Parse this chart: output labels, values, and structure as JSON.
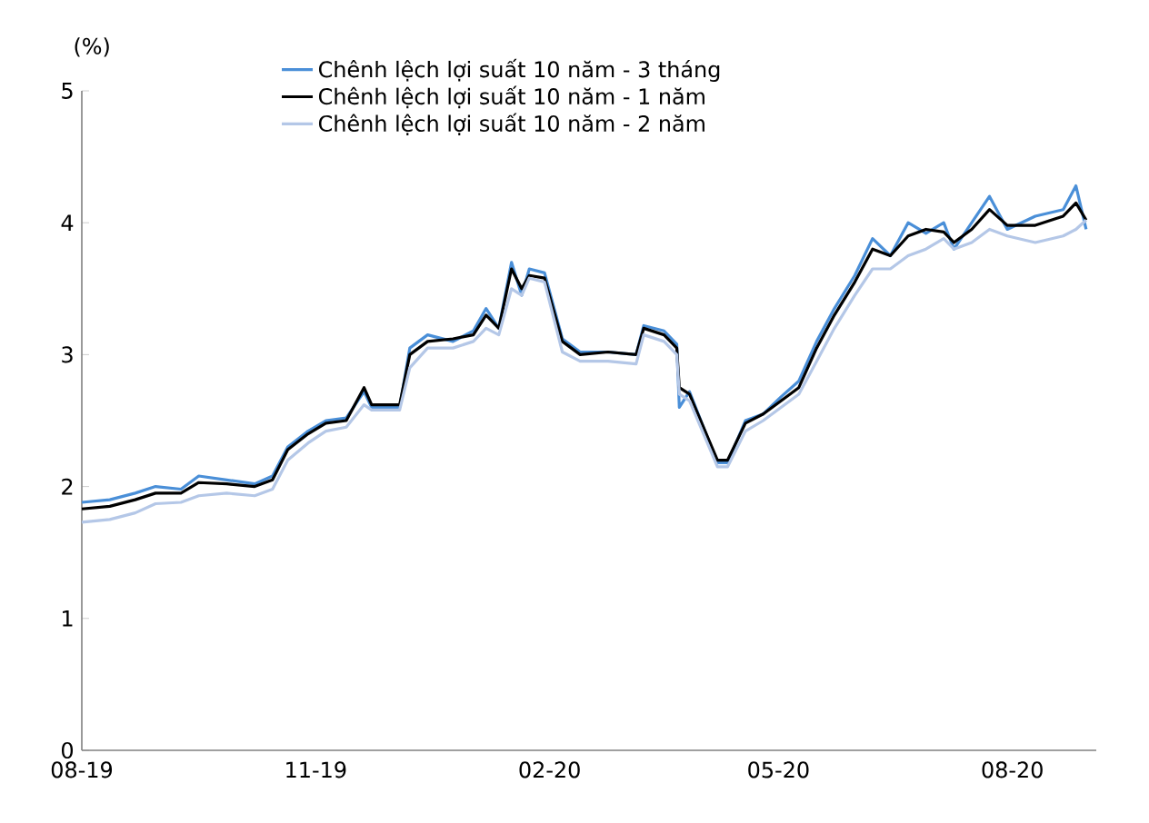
{
  "chart_data": {
    "type": "line",
    "ylabel": "(%)",
    "x": [
      "2019-08-01",
      "2019-08-12",
      "2019-08-22",
      "2019-08-30",
      "2019-09-09",
      "2019-09-16",
      "2019-09-27",
      "2019-10-08",
      "2019-10-15",
      "2019-10-21",
      "2019-10-29",
      "2019-11-05",
      "2019-11-13",
      "2019-11-20",
      "2019-11-23",
      "2019-12-04",
      "2019-12-08",
      "2019-12-15",
      "2019-12-25",
      "2020-01-02",
      "2020-01-07",
      "2020-01-12",
      "2020-01-17",
      "2020-01-21",
      "2020-01-24",
      "2020-01-30",
      "2020-02-06",
      "2020-02-13",
      "2020-02-24",
      "2020-03-06",
      "2020-03-09",
      "2020-03-17",
      "2020-03-22",
      "2020-03-23",
      "2020-03-27",
      "2020-04-07",
      "2020-04-11",
      "2020-04-18",
      "2020-04-25",
      "2020-05-02",
      "2020-05-09",
      "2020-05-16",
      "2020-05-23",
      "2020-05-31",
      "2020-06-07",
      "2020-06-14",
      "2020-06-21",
      "2020-06-28",
      "2020-07-05",
      "2020-07-09",
      "2020-07-16",
      "2020-07-23",
      "2020-07-30",
      "2020-08-10",
      "2020-08-21",
      "2020-08-26",
      "2020-08-30"
    ],
    "series": [
      {
        "name": "Chênh lệch lợi suất 10 năm - 3 tháng",
        "color": "#4a8fd8",
        "values": [
          1.88,
          1.9,
          1.95,
          2.0,
          1.98,
          2.08,
          2.05,
          2.02,
          2.08,
          2.3,
          2.42,
          2.5,
          2.52,
          2.72,
          2.6,
          2.6,
          3.05,
          3.15,
          3.1,
          3.18,
          3.35,
          3.2,
          3.7,
          3.45,
          3.65,
          3.62,
          3.12,
          3.02,
          3.02,
          3.0,
          3.22,
          3.18,
          3.08,
          2.6,
          2.72,
          2.18,
          2.18,
          2.5,
          2.55,
          2.68,
          2.8,
          3.1,
          3.35,
          3.6,
          3.88,
          3.75,
          4.0,
          3.92,
          4.0,
          3.8,
          4.0,
          4.2,
          3.95,
          4.05,
          4.1,
          4.28,
          3.95
        ]
      },
      {
        "name": "Chênh lệch lợi suất 10 năm - 1 năm",
        "color": "#000000",
        "values": [
          1.83,
          1.85,
          1.9,
          1.95,
          1.95,
          2.03,
          2.02,
          2.0,
          2.05,
          2.28,
          2.4,
          2.48,
          2.5,
          2.75,
          2.62,
          2.62,
          3.0,
          3.1,
          3.12,
          3.15,
          3.3,
          3.2,
          3.65,
          3.5,
          3.6,
          3.58,
          3.1,
          3.0,
          3.02,
          3.0,
          3.2,
          3.15,
          3.05,
          2.75,
          2.7,
          2.2,
          2.2,
          2.48,
          2.55,
          2.65,
          2.75,
          3.05,
          3.3,
          3.55,
          3.8,
          3.75,
          3.9,
          3.95,
          3.93,
          3.85,
          3.95,
          4.1,
          3.98,
          3.98,
          4.05,
          4.15,
          4.02
        ]
      },
      {
        "name": "Chênh lệch lợi suất 10 năm - 2 năm",
        "color": "#b4c7e7",
        "values": [
          1.73,
          1.75,
          1.8,
          1.87,
          1.88,
          1.93,
          1.95,
          1.93,
          1.98,
          2.2,
          2.33,
          2.42,
          2.45,
          2.62,
          2.58,
          2.58,
          2.9,
          3.05,
          3.05,
          3.1,
          3.2,
          3.15,
          3.5,
          3.45,
          3.58,
          3.55,
          3.02,
          2.95,
          2.95,
          2.93,
          3.15,
          3.1,
          3.0,
          2.7,
          2.65,
          2.15,
          2.15,
          2.42,
          2.5,
          2.6,
          2.7,
          2.95,
          3.2,
          3.45,
          3.65,
          3.65,
          3.75,
          3.8,
          3.88,
          3.8,
          3.85,
          3.95,
          3.9,
          3.85,
          3.9,
          3.95,
          4.02
        ]
      }
    ],
    "xlim": [
      "2019-08-01",
      "2020-09-03"
    ],
    "xticks": [
      {
        "value": "2019-08-01",
        "label": "08-19"
      },
      {
        "value": "2019-11-01",
        "label": "11-19"
      },
      {
        "value": "2020-02-01",
        "label": "02-20"
      },
      {
        "value": "2020-05-01",
        "label": "05-20"
      },
      {
        "value": "2020-08-01",
        "label": "08-20"
      }
    ],
    "ylim": [
      0,
      5
    ],
    "yticks": [
      0,
      1,
      2,
      3,
      4,
      5
    ],
    "grid": false,
    "legend": "top",
    "marker": "none",
    "line_style": "solid"
  }
}
